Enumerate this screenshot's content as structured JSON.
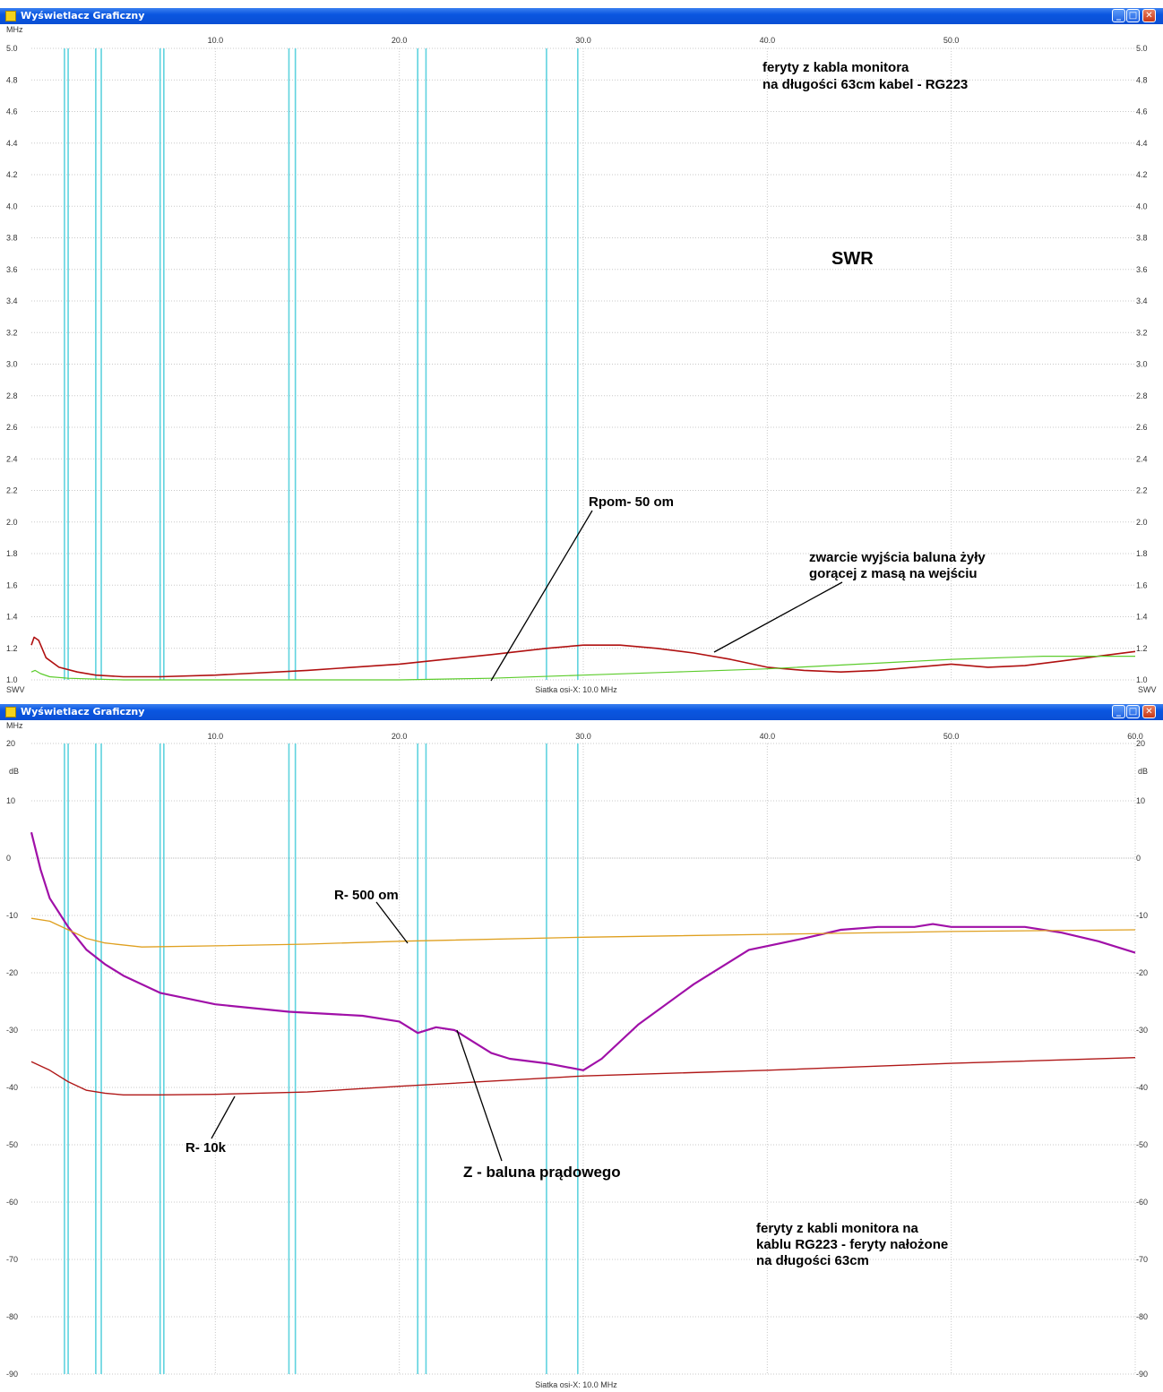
{
  "colors": {
    "grid": "#c8c8c8",
    "marker": "#5fd3df",
    "swr_red": "#b01010",
    "swr_green": "#5ccc2c",
    "purple": "#a010a8",
    "orange": "#dfa020",
    "darkred": "#b01818",
    "annotation": "#000000"
  },
  "icons": {
    "app": "app-icon",
    "minimize": "minimize-icon",
    "maximize": "maximize-icon",
    "close": "close-icon"
  },
  "window1": {
    "title": "Wyświetlacz Graficzny",
    "x_unit_label": "MHz",
    "y_unit_left": "SWV",
    "y_unit_right": "SWV",
    "footer": "Siatka osi-X: 10.0 MHz",
    "annotations": {
      "swr": "SWR",
      "note_line1": "feryty z kabla monitora",
      "note_line2": "na długości 63cm kabel - RG223",
      "rpom": "Rpom- 50 om",
      "short_line1": "zwarcie wyjścia baluna żyły",
      "short_line2": "gorącej z masą na wejściu"
    }
  },
  "window2": {
    "title": "Wyświetlacz Graficzny",
    "x_unit_label": "MHz",
    "y_unit_left": "dB",
    "y_unit_right": "dB",
    "footer": "Siatka osi-X: 10.0 MHz",
    "annotations": {
      "r500": "R- 500 om",
      "r10k": "R- 10k",
      "zbalun": "Z - baluna prądowego",
      "note_line1": "feryty z kabli monitora  na",
      "note_line2": "kablu RG223 -  feryty nałożone",
      "note_line3": "na długości 63cm"
    }
  },
  "chart_data": [
    {
      "type": "line",
      "title": "SWR",
      "xlabel": "MHz",
      "ylabel": "SWV",
      "xlim": [
        0,
        60
      ],
      "ylim": [
        1.0,
        5.0
      ],
      "x_ticks": [
        "10.0",
        "20.0",
        "30.0",
        "40.0",
        "50.0"
      ],
      "y_ticks": [
        "5.0",
        "4.8",
        "4.6",
        "4.4",
        "4.2",
        "4.0",
        "3.8",
        "3.6",
        "3.4",
        "3.2",
        "3.0",
        "2.8",
        "2.6",
        "2.4",
        "2.2",
        "2.0",
        "1.8",
        "1.6",
        "1.4",
        "1.2",
        "1.0"
      ],
      "grid": true,
      "band_markers_mhz": [
        1.8,
        2.0,
        3.5,
        3.8,
        7.0,
        7.2,
        14.0,
        14.35,
        21.0,
        21.45,
        28.0,
        29.7
      ],
      "series": [
        {
          "color": "#b01010",
          "x": [
            0.0,
            0.15,
            0.4,
            0.8,
            1.5,
            2.5,
            3.5,
            5.0,
            7.0,
            10.0,
            15.0,
            20.0,
            25.0,
            28.0,
            30.0,
            32.0,
            34.0,
            36.0,
            38.0,
            40.0,
            42.0,
            44.0,
            46.0,
            48.0,
            50.0,
            52.0,
            54.0,
            56.0,
            58.0,
            60.0
          ],
          "y": [
            1.22,
            1.27,
            1.25,
            1.14,
            1.08,
            1.05,
            1.03,
            1.02,
            1.02,
            1.03,
            1.06,
            1.1,
            1.16,
            1.2,
            1.22,
            1.22,
            1.2,
            1.17,
            1.13,
            1.08,
            1.06,
            1.05,
            1.06,
            1.08,
            1.1,
            1.08,
            1.09,
            1.12,
            1.15,
            1.18
          ]
        },
        {
          "color": "#5ccc2c",
          "x": [
            0.0,
            0.2,
            0.5,
            1.0,
            2.0,
            5.0,
            10.0,
            20.0,
            25.0,
            30.0,
            35.0,
            40.0,
            45.0,
            50.0,
            55.0,
            60.0
          ],
          "y": [
            1.05,
            1.06,
            1.04,
            1.02,
            1.01,
            1.0,
            1.0,
            1.0,
            1.01,
            1.03,
            1.05,
            1.07,
            1.1,
            1.13,
            1.15,
            1.15
          ]
        }
      ]
    },
    {
      "type": "line",
      "xlabel": "MHz",
      "ylabel": "dB",
      "xlim": [
        0,
        60
      ],
      "ylim": [
        -90,
        20
      ],
      "x_ticks": [
        "10.0",
        "20.0",
        "30.0",
        "40.0",
        "50.0",
        "60.0"
      ],
      "y_ticks": [
        "20",
        "10",
        "0",
        "-10",
        "-20",
        "-30",
        "-40",
        "-50",
        "-60",
        "-70",
        "-80",
        "-90"
      ],
      "grid": true,
      "band_markers_mhz": [
        1.8,
        2.0,
        3.5,
        3.8,
        7.0,
        7.2,
        14.0,
        14.35,
        21.0,
        21.45,
        28.0,
        29.7
      ],
      "series": [
        {
          "color": "#a010a8",
          "x": [
            0.0,
            0.5,
            1.0,
            2.0,
            3.0,
            4.0,
            5.0,
            7.0,
            10.0,
            14.0,
            18.0,
            20.0,
            21.0,
            22.0,
            23.0,
            24.0,
            25.0,
            26.0,
            28.0,
            30.0,
            31.0,
            33.0,
            36.0,
            39.0,
            42.0,
            44.0,
            46.0,
            48.0,
            49.0,
            50.0,
            52.0,
            54.0,
            56.0,
            58.0,
            60.0
          ],
          "y": [
            4.5,
            -2.0,
            -7.0,
            -12.0,
            -16.0,
            -18.5,
            -20.5,
            -23.5,
            -25.5,
            -26.8,
            -27.5,
            -28.5,
            -30.5,
            -29.5,
            -30.0,
            -32.0,
            -34.0,
            -35.0,
            -35.8,
            -37.0,
            -35.0,
            -29.0,
            -22.0,
            -16.0,
            -14.0,
            -12.5,
            -12.0,
            -12.0,
            -11.5,
            -12.0,
            -12.0,
            -12.0,
            -13.0,
            -14.5,
            -16.5
          ]
        },
        {
          "color": "#dfa020",
          "x": [
            0.0,
            1.0,
            2.0,
            3.0,
            4.0,
            6.0,
            10.0,
            15.0,
            20.0,
            30.0,
            40.0,
            50.0,
            60.0
          ],
          "y": [
            -10.5,
            -11.0,
            -12.5,
            -14.0,
            -14.8,
            -15.5,
            -15.3,
            -15.0,
            -14.5,
            -13.8,
            -13.3,
            -12.8,
            -12.5
          ]
        },
        {
          "color": "#b01818",
          "x": [
            0.0,
            1.0,
            2.0,
            3.0,
            4.0,
            5.0,
            7.0,
            10.0,
            15.0,
            20.0,
            30.0,
            40.0,
            50.0,
            60.0
          ],
          "y": [
            -35.5,
            -37.0,
            -39.0,
            -40.5,
            -41.0,
            -41.3,
            -41.3,
            -41.2,
            -40.8,
            -39.8,
            -38.0,
            -37.0,
            -35.8,
            -34.8
          ]
        }
      ]
    }
  ]
}
